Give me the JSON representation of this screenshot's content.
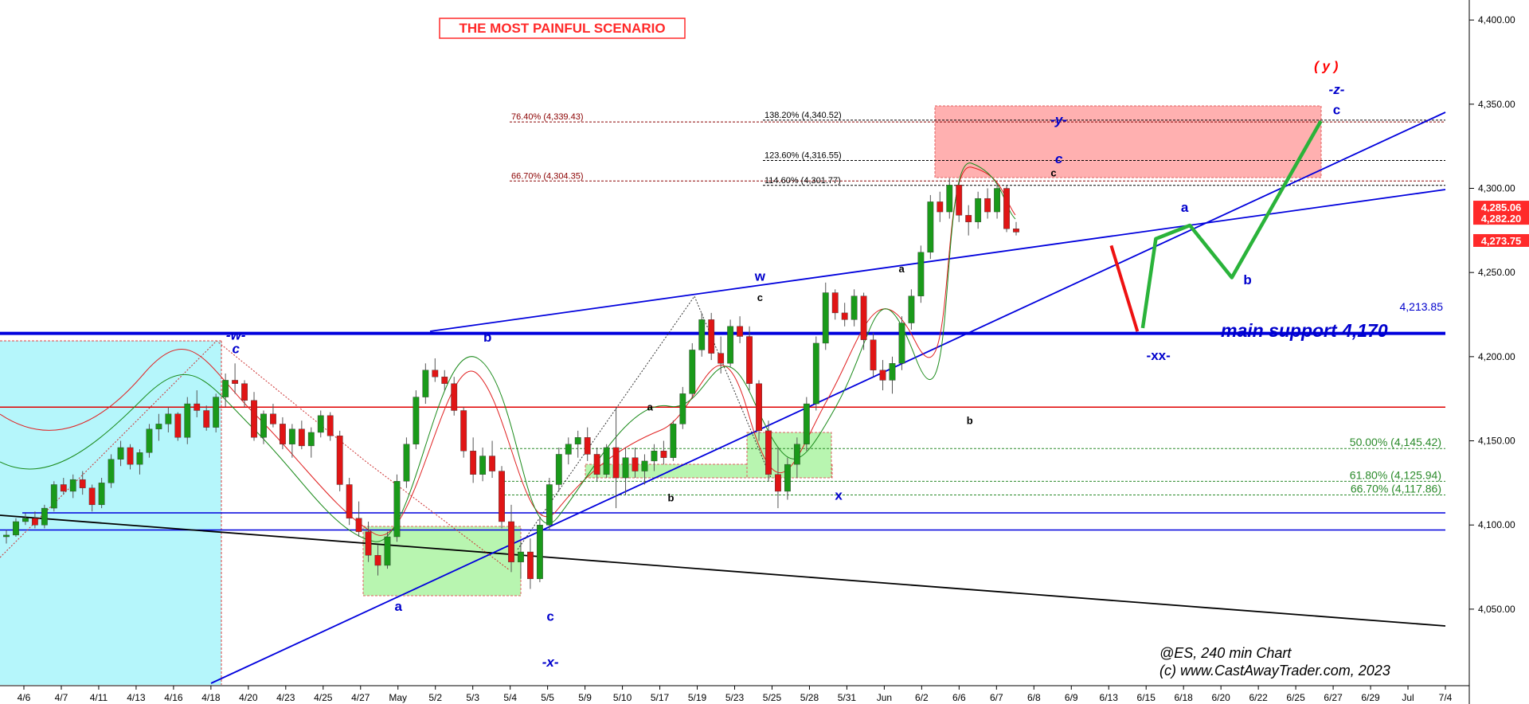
{
  "chart_data": {
    "type": "candlestick",
    "title": "THE MOST PAINFUL SCENARIO",
    "symbol_caption": "@ES, 240 min Chart",
    "copyright": "(c) www.CastAwayTrader.com, 2023",
    "ylim": [
      4005,
      4410
    ],
    "y_ticks": [
      "4,400.00",
      "4,350.00",
      "4,300.00",
      "4,250.00",
      "4,200.00",
      "4,150.00",
      "4,100.00",
      "4,050.00"
    ],
    "y_tick_values": [
      4400,
      4350,
      4300,
      4250,
      4200,
      4150,
      4100,
      4050
    ],
    "x_ticks": [
      "4/6",
      "4/7",
      "4/11",
      "4/13",
      "4/16",
      "4/18",
      "4/20",
      "4/23",
      "4/25",
      "4/27",
      "May",
      "5/2",
      "5/3",
      "5/4",
      "5/5",
      "5/9",
      "5/10",
      "5/17",
      "5/19",
      "5/23",
      "5/25",
      "5/28",
      "5/31",
      "Jun",
      "6/2",
      "6/6",
      "6/7",
      "6/8",
      "6/9",
      "6/13",
      "6/15",
      "6/18",
      "6/20",
      "6/22",
      "6/25",
      "6/27",
      "6/29",
      "Jul",
      "7/4"
    ],
    "price_boxes": [
      {
        "label": "4,285.06",
        "value": 4285.06,
        "color": "#ff2a2a"
      },
      {
        "label": "4,282.20",
        "value": 4282.2,
        "color": "#ff2a2a"
      },
      {
        "label": "4,273.75",
        "value": 4273.75,
        "color": "#ff2a2a"
      }
    ],
    "support_line": {
      "label": "4,213.85",
      "value": 4213.85,
      "color": "#0000dd"
    },
    "main_support_text": "main support 4,170",
    "horizontal_lines": [
      {
        "value": 4170,
        "color": "#e00000"
      },
      {
        "value": 4097,
        "color": "#0000dd"
      }
    ],
    "fib_levels_upper": [
      {
        "label": "76.40% (4,339.43)",
        "value": 4339.43,
        "color": "#8b0000"
      },
      {
        "label": "66.70% (4,304.35)",
        "value": 4304.35,
        "color": "#8b0000"
      },
      {
        "label": "138.20% (4,340.52)",
        "value": 4340.52,
        "color": "#000000"
      },
      {
        "label": "123.60% (4,316.55)",
        "value": 4316.55,
        "color": "#000000"
      },
      {
        "label": "114.60% (4,301.77)",
        "value": 4301.77,
        "color": "#000000"
      }
    ],
    "fib_levels_lower": [
      {
        "label": "50.00% (4,145.42)",
        "value": 4145.42,
        "color": "#2a8a2a"
      },
      {
        "label": "61.80% (4,125.94)",
        "value": 4125.94,
        "color": "#2a8a2a"
      },
      {
        "label": "66.70% (4,117.86)",
        "value": 4117.86,
        "color": "#2a8a2a"
      }
    ],
    "wave_labels": [
      {
        "text": "-w-",
        "x": 4.5,
        "y": 4210,
        "color": "#0000cc",
        "style": "italic"
      },
      {
        "text": "c",
        "x": 4.5,
        "y": 4202,
        "color": "#0000cc",
        "style": "italic"
      },
      {
        "text": "b",
        "x": 9.3,
        "y": 4209,
        "color": "#0000cc",
        "style": "normal"
      },
      {
        "text": "a",
        "x": 7.6,
        "y": 4049,
        "color": "#0000cc",
        "style": "normal"
      },
      {
        "text": "c",
        "x": 10.5,
        "y": 4043,
        "color": "#0000cc",
        "style": "normal"
      },
      {
        "text": "-x-",
        "x": 10.5,
        "y": 4016,
        "color": "#0000cc",
        "style": "italic"
      },
      {
        "text": "a",
        "x": 12.4,
        "y": 4168,
        "color": "#000000",
        "style": "normal"
      },
      {
        "text": "b",
        "x": 12.8,
        "y": 4114,
        "color": "#000000",
        "style": "normal"
      },
      {
        "text": "w",
        "x": 14.5,
        "y": 4245,
        "color": "#0000cc",
        "style": "normal"
      },
      {
        "text": "c",
        "x": 14.5,
        "y": 4233,
        "color": "#000000",
        "style": "normal"
      },
      {
        "text": "x",
        "x": 16.0,
        "y": 4115,
        "color": "#0000cc",
        "style": "normal"
      },
      {
        "text": "a",
        "x": 17.2,
        "y": 4250,
        "color": "#000000",
        "style": "normal"
      },
      {
        "text": "b",
        "x": 18.5,
        "y": 4160,
        "color": "#000000",
        "style": "normal"
      },
      {
        "text": "-y-",
        "x": 20.2,
        "y": 4338,
        "color": "#0000cc",
        "style": "italic"
      },
      {
        "text": "c",
        "x": 20.2,
        "y": 4315,
        "color": "#0000cc",
        "style": "italic"
      },
      {
        "text": "c",
        "x": 20.1,
        "y": 4307,
        "color": "#000000",
        "style": "normal"
      },
      {
        "text": "-xx-",
        "x": 22.1,
        "y": 4198,
        "color": "#0000cc",
        "style": "normal"
      },
      {
        "text": "a",
        "x": 22.6,
        "y": 4286,
        "color": "#0000cc",
        "style": "normal"
      },
      {
        "text": "b",
        "x": 23.8,
        "y": 4243,
        "color": "#0000cc",
        "style": "normal"
      },
      {
        "text": "( y )",
        "x": 25.3,
        "y": 4370,
        "color": "#ff0000",
        "style": "italic"
      },
      {
        "text": "-z-",
        "x": 25.5,
        "y": 4356,
        "color": "#0000cc",
        "style": "italic"
      },
      {
        "text": "c",
        "x": 25.5,
        "y": 4344,
        "color": "#0000cc",
        "style": "normal"
      }
    ],
    "projection_red": [
      [
        21.2,
        4266
      ],
      [
        21.7,
        4215
      ]
    ],
    "projection_green": [
      [
        21.8,
        4217
      ],
      [
        22.05,
        4270
      ],
      [
        22.7,
        4278
      ],
      [
        23.5,
        4247
      ],
      [
        25.2,
        4340
      ]
    ],
    "candles": [
      [
        4093,
        4097,
        4089,
        4094
      ],
      [
        4094,
        4104,
        4093,
        4102
      ],
      [
        4102,
        4107,
        4100,
        4104
      ],
      [
        4104,
        4108,
        4098,
        4100
      ],
      [
        4100,
        4112,
        4098,
        4110
      ],
      [
        4110,
        4126,
        4108,
        4124
      ],
      [
        4124,
        4128,
        4118,
        4120
      ],
      [
        4120,
        4130,
        4116,
        4127
      ],
      [
        4127,
        4132,
        4118,
        4122
      ],
      [
        4122,
        4124,
        4108,
        4112
      ],
      [
        4112,
        4128,
        4110,
        4125
      ],
      [
        4125,
        4142,
        4122,
        4139
      ],
      [
        4139,
        4150,
        4135,
        4146
      ],
      [
        4146,
        4148,
        4133,
        4136
      ],
      [
        4136,
        4145,
        4130,
        4143
      ],
      [
        4143,
        4160,
        4140,
        4157
      ],
      [
        4157,
        4166,
        4150,
        4160
      ],
      [
        4160,
        4170,
        4155,
        4166
      ],
      [
        4166,
        4167,
        4150,
        4152
      ],
      [
        4152,
        4176,
        4148,
        4172
      ],
      [
        4172,
        4180,
        4164,
        4168
      ],
      [
        4168,
        4171,
        4156,
        4158
      ],
      [
        4158,
        4178,
        4155,
        4176
      ],
      [
        4176,
        4190,
        4170,
        4186
      ],
      [
        4186,
        4196,
        4178,
        4184
      ],
      [
        4184,
        4186,
        4170,
        4174
      ],
      [
        4174,
        4179,
        4150,
        4152
      ],
      [
        4152,
        4168,
        4148,
        4166
      ],
      [
        4166,
        4172,
        4158,
        4160
      ],
      [
        4160,
        4164,
        4145,
        4148
      ],
      [
        4148,
        4160,
        4140,
        4157
      ],
      [
        4157,
        4162,
        4145,
        4147
      ],
      [
        4147,
        4158,
        4140,
        4155
      ],
      [
        4155,
        4168,
        4152,
        4165
      ],
      [
        4165,
        4167,
        4150,
        4153
      ],
      [
        4153,
        4156,
        4120,
        4124
      ],
      [
        4124,
        4128,
        4100,
        4104
      ],
      [
        4104,
        4114,
        4093,
        4096
      ],
      [
        4096,
        4102,
        4078,
        4082
      ],
      [
        4082,
        4088,
        4070,
        4076
      ],
      [
        4076,
        4096,
        4074,
        4093
      ],
      [
        4093,
        4130,
        4090,
        4126
      ],
      [
        4126,
        4152,
        4122,
        4148
      ],
      [
        4148,
        4180,
        4145,
        4176
      ],
      [
        4176,
        4196,
        4172,
        4192
      ],
      [
        4192,
        4199,
        4185,
        4188
      ],
      [
        4188,
        4192,
        4180,
        4184
      ],
      [
        4184,
        4188,
        4165,
        4168
      ],
      [
        4168,
        4170,
        4140,
        4144
      ],
      [
        4144,
        4152,
        4125,
        4130
      ],
      [
        4130,
        4146,
        4126,
        4141
      ],
      [
        4141,
        4150,
        4128,
        4132
      ],
      [
        4132,
        4135,
        4098,
        4102
      ],
      [
        4102,
        4112,
        4072,
        4078
      ],
      [
        4078,
        4090,
        4068,
        4084
      ],
      [
        4084,
        4092,
        4062,
        4068
      ],
      [
        4068,
        4104,
        4066,
        4100
      ],
      [
        4100,
        4128,
        4097,
        4124
      ],
      [
        4124,
        4146,
        4120,
        4142
      ],
      [
        4142,
        4152,
        4136,
        4148
      ],
      [
        4148,
        4156,
        4140,
        4152
      ],
      [
        4152,
        4158,
        4138,
        4142
      ],
      [
        4142,
        4146,
        4126,
        4130
      ],
      [
        4130,
        4148,
        4128,
        4146
      ],
      [
        4146,
        4170,
        4110,
        4128
      ],
      [
        4128,
        4146,
        4118,
        4140
      ],
      [
        4140,
        4146,
        4128,
        4132
      ],
      [
        4132,
        4142,
        4124,
        4138
      ],
      [
        4138,
        4148,
        4132,
        4144
      ],
      [
        4144,
        4150,
        4136,
        4140
      ],
      [
        4140,
        4162,
        4138,
        4160
      ],
      [
        4160,
        4182,
        4157,
        4178
      ],
      [
        4178,
        4208,
        4175,
        4204
      ],
      [
        4204,
        4226,
        4200,
        4222
      ],
      [
        4222,
        4226,
        4198,
        4202
      ],
      [
        4202,
        4212,
        4190,
        4196
      ],
      [
        4196,
        4222,
        4194,
        4218
      ],
      [
        4218,
        4224,
        4208,
        4212
      ],
      [
        4212,
        4218,
        4180,
        4184
      ],
      [
        4184,
        4186,
        4150,
        4156
      ],
      [
        4156,
        4162,
        4126,
        4130
      ],
      [
        4130,
        4146,
        4110,
        4120
      ],
      [
        4120,
        4140,
        4115,
        4136
      ],
      [
        4136,
        4152,
        4128,
        4148
      ],
      [
        4148,
        4176,
        4144,
        4172
      ],
      [
        4172,
        4212,
        4168,
        4208
      ],
      [
        4208,
        4244,
        4204,
        4238
      ],
      [
        4238,
        4240,
        4222,
        4226
      ],
      [
        4226,
        4232,
        4218,
        4222
      ],
      [
        4222,
        4240,
        4218,
        4236
      ],
      [
        4236,
        4238,
        4204,
        4210
      ],
      [
        4210,
        4214,
        4188,
        4192
      ],
      [
        4192,
        4198,
        4180,
        4186
      ],
      [
        4186,
        4200,
        4178,
        4196
      ],
      [
        4196,
        4224,
        4192,
        4220
      ],
      [
        4220,
        4240,
        4216,
        4236
      ],
      [
        4236,
        4266,
        4232,
        4262
      ],
      [
        4262,
        4296,
        4258,
        4292
      ],
      [
        4292,
        4298,
        4280,
        4286
      ],
      [
        4286,
        4306,
        4282,
        4302
      ],
      [
        4302,
        4304,
        4280,
        4284
      ],
      [
        4284,
        4290,
        4272,
        4280
      ],
      [
        4280,
        4298,
        4276,
        4294
      ],
      [
        4294,
        4300,
        4282,
        4286
      ],
      [
        4286,
        4303,
        4282,
        4300
      ],
      [
        4300,
        4302,
        4274,
        4276
      ],
      [
        4276,
        4280,
        4272,
        4274
      ]
    ]
  }
}
